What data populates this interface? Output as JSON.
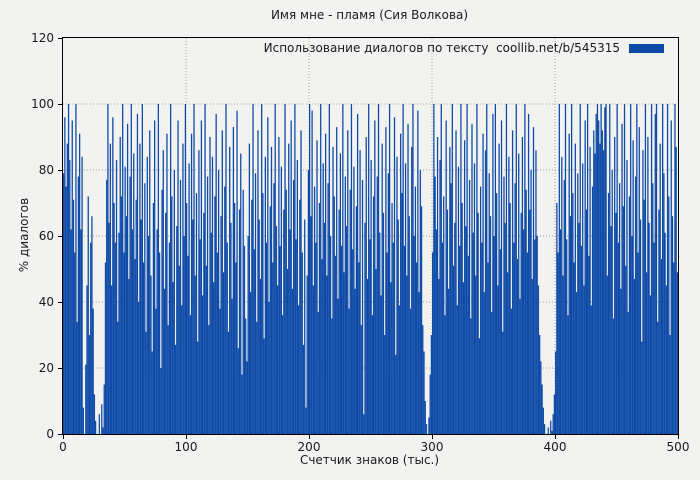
{
  "window": {
    "background_color": "#f2f2f0",
    "text_color": "#1a1a1a"
  },
  "chart_data": {
    "type": "bar",
    "style": "impulses",
    "title": "Имя мне - пламя (Сия Волкова)",
    "xlabel": "Счетчик знаков (тыс.)",
    "ylabel": "% диалогов",
    "legend": {
      "label": "Использование диалогов по тексту  coollib.net/b/545315",
      "swatch_color": "#0e4aa7",
      "position": "top-right-inside"
    },
    "xlim": [
      0,
      500
    ],
    "ylim": [
      0,
      120
    ],
    "xticks": [
      0,
      100,
      200,
      300,
      400,
      500
    ],
    "yticks": [
      0,
      20,
      40,
      60,
      80,
      100,
      120
    ],
    "grid": "dotted",
    "grid_color": "#a0a0a0",
    "bar_color": "#0e4aa7",
    "border_color": "#000000",
    "x_start": 1,
    "x_step": 1,
    "values": [
      79,
      96,
      75,
      88,
      100,
      83,
      62,
      95,
      71,
      55,
      100,
      34,
      78,
      91,
      62,
      84,
      8,
      0,
      21,
      45,
      72,
      30,
      58,
      66,
      38,
      12,
      4,
      0,
      0,
      6,
      0,
      9,
      2,
      15,
      52,
      77,
      100,
      64,
      88,
      45,
      96,
      70,
      58,
      83,
      34,
      61,
      90,
      72,
      100,
      55,
      81,
      66,
      94,
      47,
      78,
      100,
      62,
      85,
      53,
      71,
      97,
      40,
      88,
      65,
      100,
      52,
      76,
      31,
      84,
      60,
      92,
      48,
      25,
      70,
      95,
      38,
      62,
      100,
      55,
      20,
      74,
      86,
      44,
      67,
      91,
      33,
      58,
      100,
      72,
      46,
      80,
      27,
      63,
      95,
      51,
      77,
      39,
      88,
      60,
      100,
      70,
      54,
      82,
      36,
      91,
      65,
      100,
      48,
      73,
      28,
      86,
      59,
      95,
      42,
      67,
      100,
      51,
      78,
      33,
      90,
      61,
      84,
      46,
      72,
      97,
      55,
      80,
      38,
      66,
      92,
      49,
      75,
      100,
      58,
      31,
      87,
      64,
      41,
      93,
      70,
      52,
      98,
      26,
      68,
      85,
      18,
      74,
      57,
      35,
      22,
      60,
      88,
      43,
      71,
      100,
      56,
      79,
      34,
      92,
      65,
      47,
      100,
      73,
      29,
      84,
      58,
      96,
      40,
      69,
      87,
      52,
      76,
      100,
      63,
      45,
      90,
      57,
      81,
      36,
      68,
      100,
      74,
      50,
      88,
      62,
      95,
      44,
      77,
      100,
      59,
      83,
      39,
      71,
      92,
      55,
      27,
      65,
      8,
      48,
      80,
      100,
      66,
      98,
      45,
      75,
      58,
      89,
      37,
      70,
      100,
      53,
      82,
      64,
      91,
      48,
      76,
      100,
      60,
      35,
      87,
      72,
      54,
      93,
      41,
      68,
      85,
      57,
      100,
      49,
      78,
      63,
      92,
      38,
      74,
      100,
      56,
      81,
      44,
      69,
      97,
      52,
      86,
      33,
      77,
      6,
      64,
      90,
      47,
      100,
      59,
      83,
      36,
      72,
      95,
      50,
      78,
      100,
      61,
      42,
      88,
      67,
      30,
      93,
      55,
      79,
      100,
      46,
      70,
      58,
      96,
      24,
      84,
      65,
      39,
      91,
      73,
      100,
      57,
      82,
      48,
      94,
      66,
      38,
      87,
      100,
      60,
      75,
      52,
      98,
      43,
      80,
      69,
      33,
      25,
      10,
      3,
      0,
      5,
      18,
      30,
      55,
      100,
      78,
      62,
      90,
      47,
      83,
      100,
      58,
      72,
      36,
      95,
      68,
      44,
      87,
      76,
      100,
      51,
      64,
      92,
      39,
      81,
      57,
      100,
      70,
      46,
      89,
      63,
      100,
      54,
      77,
      35,
      94,
      61,
      82,
      48,
      100,
      67,
      29,
      75,
      58,
      91,
      43,
      86,
      100,
      52,
      79,
      66,
      37,
      97,
      60,
      100,
      73,
      45,
      88,
      56,
      95,
      31,
      78,
      64,
      100,
      49,
      84,
      70,
      38,
      92,
      58,
      76,
      100,
      53,
      85,
      41,
      67,
      90,
      62,
      100,
      74,
      55,
      97,
      68,
      80,
      47,
      93,
      59,
      86,
      60,
      45,
      30,
      22,
      15,
      8,
      3,
      0,
      0,
      2,
      0,
      4,
      1,
      6,
      12,
      25,
      70,
      55,
      100,
      62,
      84,
      48,
      77,
      100,
      59,
      36,
      91,
      66,
      100,
      73,
      52,
      88,
      43,
      79,
      64,
      100,
      57,
      82,
      45,
      95,
      68,
      100,
      54,
      87,
      39,
      75,
      92,
      85,
      97,
      100,
      95,
      88,
      100,
      92,
      86,
      99,
      100,
      48,
      73,
      100,
      63,
      80,
      35,
      90,
      67,
      100,
      58,
      76,
      44,
      94,
      69,
      100,
      51,
      83,
      37,
      72,
      100,
      60,
      89,
      47,
      78,
      100,
      55,
      93,
      65,
      28,
      86,
      71,
      100,
      49,
      90,
      64,
      42,
      100,
      76,
      58,
      97,
      100,
      34,
      68,
      88,
      53,
      100,
      79,
      61,
      45,
      100,
      72,
      30,
      95,
      66,
      52,
      100,
      87,
      49
    ]
  }
}
